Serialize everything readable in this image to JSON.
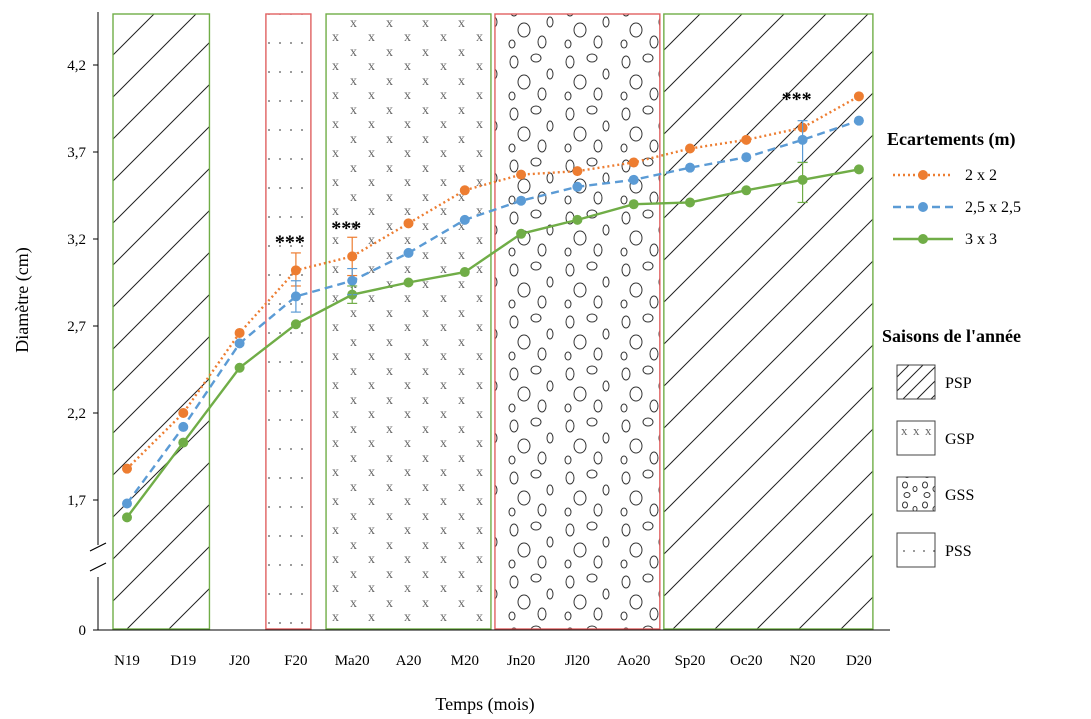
{
  "chart_data": {
    "type": "line",
    "xlabel": "Temps (mois)",
    "ylabel": "Diamètre (cm)",
    "categories": [
      "N19",
      "D19",
      "J20",
      "F20",
      "Ma20",
      "A20",
      "M20",
      "Jn20",
      "Jl20",
      "Ao20",
      "Sp20",
      "Oc20",
      "N20",
      "D20"
    ],
    "y_ticks": [
      "0",
      "1,7",
      "2,2",
      "2,7",
      "3,2",
      "3,7",
      "4,2"
    ],
    "y_axis_break": true,
    "ylim": [
      1.2,
      4.5
    ],
    "series": [
      {
        "name": "2 x 2",
        "color": "#ed7d31",
        "line_style": "dotted",
        "values": [
          1.88,
          2.2,
          2.66,
          3.02,
          3.1,
          3.29,
          3.48,
          3.57,
          3.59,
          3.64,
          3.72,
          3.77,
          3.84,
          4.02
        ]
      },
      {
        "name": "2,5 x 2,5",
        "color": "#5b9bd5",
        "line_style": "dashed",
        "values": [
          1.68,
          2.12,
          2.6,
          2.87,
          2.96,
          3.12,
          3.31,
          3.42,
          3.5,
          3.54,
          3.61,
          3.67,
          3.77,
          3.88
        ]
      },
      {
        "name": "3 x 3",
        "color": "#70ad47",
        "line_style": "solid",
        "values": [
          1.6,
          2.03,
          2.46,
          2.71,
          2.88,
          2.95,
          3.01,
          3.23,
          3.31,
          3.4,
          3.41,
          3.48,
          3.54,
          3.6
        ]
      }
    ],
    "error_bars": [
      {
        "category": "F20",
        "series": "2 x 2",
        "low": 2.93,
        "high": 3.12
      },
      {
        "category": "F20",
        "series": "2,5 x 2,5",
        "low": 2.78,
        "high": 2.96
      },
      {
        "category": "Ma20",
        "series": "2 x 2",
        "low": 2.99,
        "high": 3.21
      },
      {
        "category": "Ma20",
        "series": "2,5 x 2,5",
        "low": 2.88,
        "high": 3.03
      },
      {
        "category": "Ma20",
        "series": "3 x 3",
        "low": 2.83,
        "high": 2.93
      },
      {
        "category": "N20",
        "series": "2,5 x 2,5",
        "low": 3.64,
        "high": 3.88
      },
      {
        "category": "N20",
        "series": "3 x 3",
        "low": 3.41,
        "high": 3.64
      }
    ],
    "annotations": [
      {
        "text": "***",
        "category": "F20"
      },
      {
        "text": "***",
        "category": "Ma20"
      },
      {
        "text": "***",
        "category": "N20"
      }
    ],
    "season_bands": [
      {
        "season": "PSP",
        "from": "N19",
        "to": "D19",
        "border": "#70ad47"
      },
      {
        "season": "PSS",
        "from": "F20",
        "to": "F20",
        "border": "#e06060"
      },
      {
        "season": "GSP",
        "from": "Ma20",
        "to": "M20",
        "border": "#70ad47"
      },
      {
        "season": "GSS",
        "from": "Jn20",
        "to": "Ao20",
        "border": "#e06060"
      },
      {
        "season": "PSP",
        "from": "Sp20",
        "to": "D20",
        "border": "#70ad47"
      }
    ],
    "legend": {
      "title": "Ecartements (m)",
      "placement": "right",
      "entries": [
        "2 x 2",
        "2,5 x 2,5",
        "3 x 3"
      ]
    },
    "seasons_legend": {
      "title": "Saisons de l'année",
      "entries": [
        "PSP",
        "GSP",
        "GSS",
        "PSS"
      ]
    },
    "grid": false
  }
}
